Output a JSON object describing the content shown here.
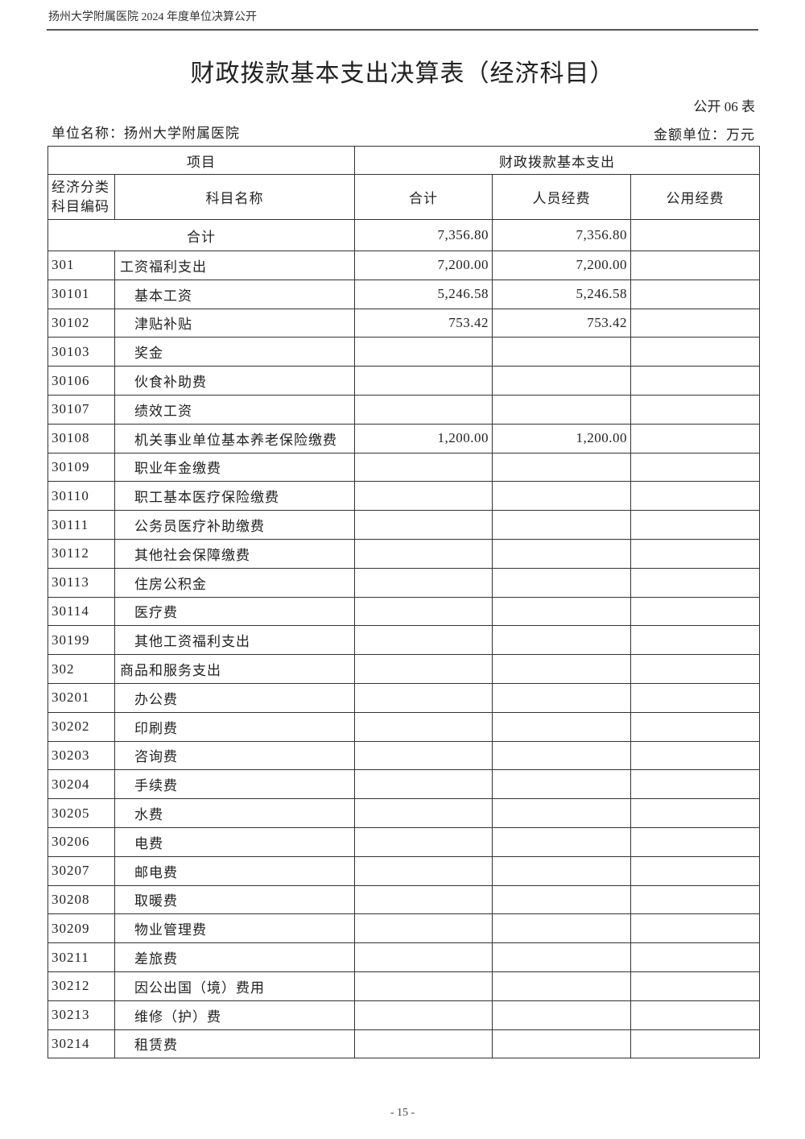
{
  "running_head": "扬州大学附属医院 2024 年度单位决算公开",
  "title": "财政拨款基本支出决算表（经济科目）",
  "table_no": "公开 06 表",
  "unit_name": "单位名称：扬州大学附属医院",
  "amount_unit": "金额单位：万元",
  "headers": {
    "item": "项目",
    "basic_expense": "财政拨款基本支出",
    "code": "经济分类科目编码",
    "subject_name": "科目名称",
    "total": "合计",
    "personnel": "人员经费",
    "public": "公用经费"
  },
  "total_row": {
    "label": "合计",
    "total": "7,356.80",
    "personnel": "7,356.80",
    "public": ""
  },
  "rows": [
    {
      "code": "301",
      "name": "工资福利支出",
      "level": 1,
      "total": "7,200.00",
      "personnel": "7,200.00",
      "public": ""
    },
    {
      "code": "30101",
      "name": "基本工资",
      "level": 2,
      "total": "5,246.58",
      "personnel": "5,246.58",
      "public": ""
    },
    {
      "code": "30102",
      "name": "津贴补贴",
      "level": 2,
      "total": "753.42",
      "personnel": "753.42",
      "public": ""
    },
    {
      "code": "30103",
      "name": "奖金",
      "level": 2,
      "total": "",
      "personnel": "",
      "public": ""
    },
    {
      "code": "30106",
      "name": "伙食补助费",
      "level": 2,
      "total": "",
      "personnel": "",
      "public": ""
    },
    {
      "code": "30107",
      "name": "绩效工资",
      "level": 2,
      "total": "",
      "personnel": "",
      "public": ""
    },
    {
      "code": "30108",
      "name": "机关事业单位基本养老保险缴费",
      "level": 2,
      "total": "1,200.00",
      "personnel": "1,200.00",
      "public": ""
    },
    {
      "code": "30109",
      "name": "职业年金缴费",
      "level": 2,
      "total": "",
      "personnel": "",
      "public": ""
    },
    {
      "code": "30110",
      "name": "职工基本医疗保险缴费",
      "level": 2,
      "total": "",
      "personnel": "",
      "public": ""
    },
    {
      "code": "30111",
      "name": "公务员医疗补助缴费",
      "level": 2,
      "total": "",
      "personnel": "",
      "public": ""
    },
    {
      "code": "30112",
      "name": "其他社会保障缴费",
      "level": 2,
      "total": "",
      "personnel": "",
      "public": ""
    },
    {
      "code": "30113",
      "name": "住房公积金",
      "level": 2,
      "total": "",
      "personnel": "",
      "public": ""
    },
    {
      "code": "30114",
      "name": "医疗费",
      "level": 2,
      "total": "",
      "personnel": "",
      "public": ""
    },
    {
      "code": "30199",
      "name": "其他工资福利支出",
      "level": 2,
      "total": "",
      "personnel": "",
      "public": ""
    },
    {
      "code": "302",
      "name": "商品和服务支出",
      "level": 1,
      "total": "",
      "personnel": "",
      "public": ""
    },
    {
      "code": "30201",
      "name": "办公费",
      "level": 2,
      "total": "",
      "personnel": "",
      "public": ""
    },
    {
      "code": "30202",
      "name": "印刷费",
      "level": 2,
      "total": "",
      "personnel": "",
      "public": ""
    },
    {
      "code": "30203",
      "name": "咨询费",
      "level": 2,
      "total": "",
      "personnel": "",
      "public": ""
    },
    {
      "code": "30204",
      "name": "手续费",
      "level": 2,
      "total": "",
      "personnel": "",
      "public": ""
    },
    {
      "code": "30205",
      "name": "水费",
      "level": 2,
      "total": "",
      "personnel": "",
      "public": ""
    },
    {
      "code": "30206",
      "name": "电费",
      "level": 2,
      "total": "",
      "personnel": "",
      "public": ""
    },
    {
      "code": "30207",
      "name": "邮电费",
      "level": 2,
      "total": "",
      "personnel": "",
      "public": ""
    },
    {
      "code": "30208",
      "name": "取暖费",
      "level": 2,
      "total": "",
      "personnel": "",
      "public": ""
    },
    {
      "code": "30209",
      "name": "物业管理费",
      "level": 2,
      "total": "",
      "personnel": "",
      "public": ""
    },
    {
      "code": "30211",
      "name": "差旅费",
      "level": 2,
      "total": "",
      "personnel": "",
      "public": ""
    },
    {
      "code": "30212",
      "name": "因公出国（境）费用",
      "level": 2,
      "total": "",
      "personnel": "",
      "public": ""
    },
    {
      "code": "30213",
      "name": "维修（护）费",
      "level": 2,
      "total": "",
      "personnel": "",
      "public": ""
    },
    {
      "code": "30214",
      "name": "租赁费",
      "level": 2,
      "total": "",
      "personnel": "",
      "public": ""
    }
  ],
  "page_number": "- 15 -"
}
